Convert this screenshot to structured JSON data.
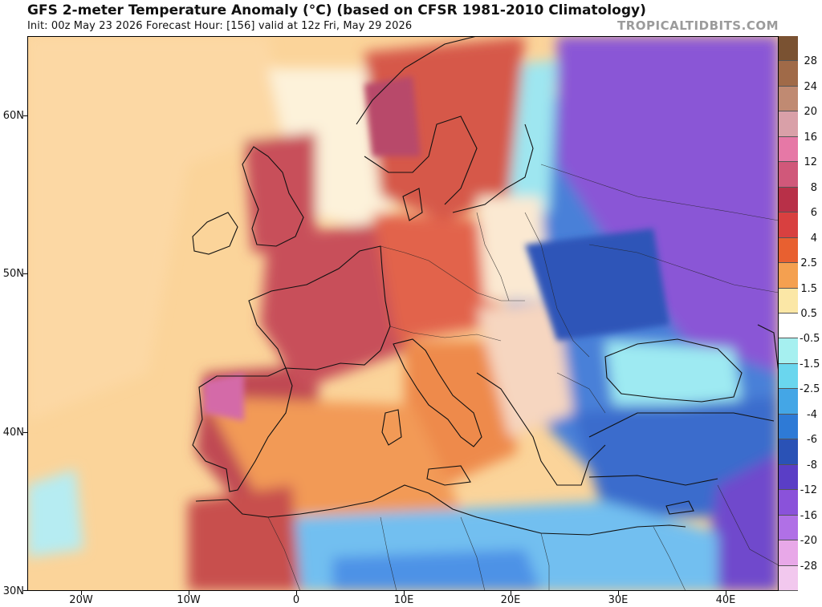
{
  "header": {
    "title": "GFS 2-meter Temperature Anomaly (°C) (based on CFSR 1981-2010 Climatology)",
    "subtitle": "Init: 00z May 23 2026   Forecast Hour: [156]   valid at 12z Fri, May 29 2026",
    "brand": "TROPICALTIDBITS.COM"
  },
  "axes": {
    "lat_ticks": [
      "60N",
      "50N",
      "40N",
      "30N"
    ],
    "lon_ticks": [
      "20W",
      "10W",
      "0",
      "10E",
      "20E",
      "30E",
      "40E"
    ]
  },
  "colorbar": {
    "labels": [
      "28",
      "24",
      "20",
      "16",
      "12",
      "8",
      "6",
      "4",
      "2.5",
      "1.5",
      "0.5",
      "-0.5",
      "-1.5",
      "-2.5",
      "-4",
      "-6",
      "-8",
      "-12",
      "-16",
      "-20",
      "-28"
    ],
    "colors": [
      "#7a5232",
      "#a06a48",
      "#c08a72",
      "#d9a0a8",
      "#e678a6",
      "#d0587a",
      "#b83048",
      "#d84040",
      "#e86030",
      "#f4a050",
      "#fbe7a6",
      "#ffffff",
      "#a6f0f0",
      "#6ad6ee",
      "#44a6e6",
      "#2e7ad6",
      "#2a52b6",
      "#5a3ec6",
      "#8a52da",
      "#b070e6",
      "#e8a8e8",
      "#f2c8ee"
    ]
  }
}
